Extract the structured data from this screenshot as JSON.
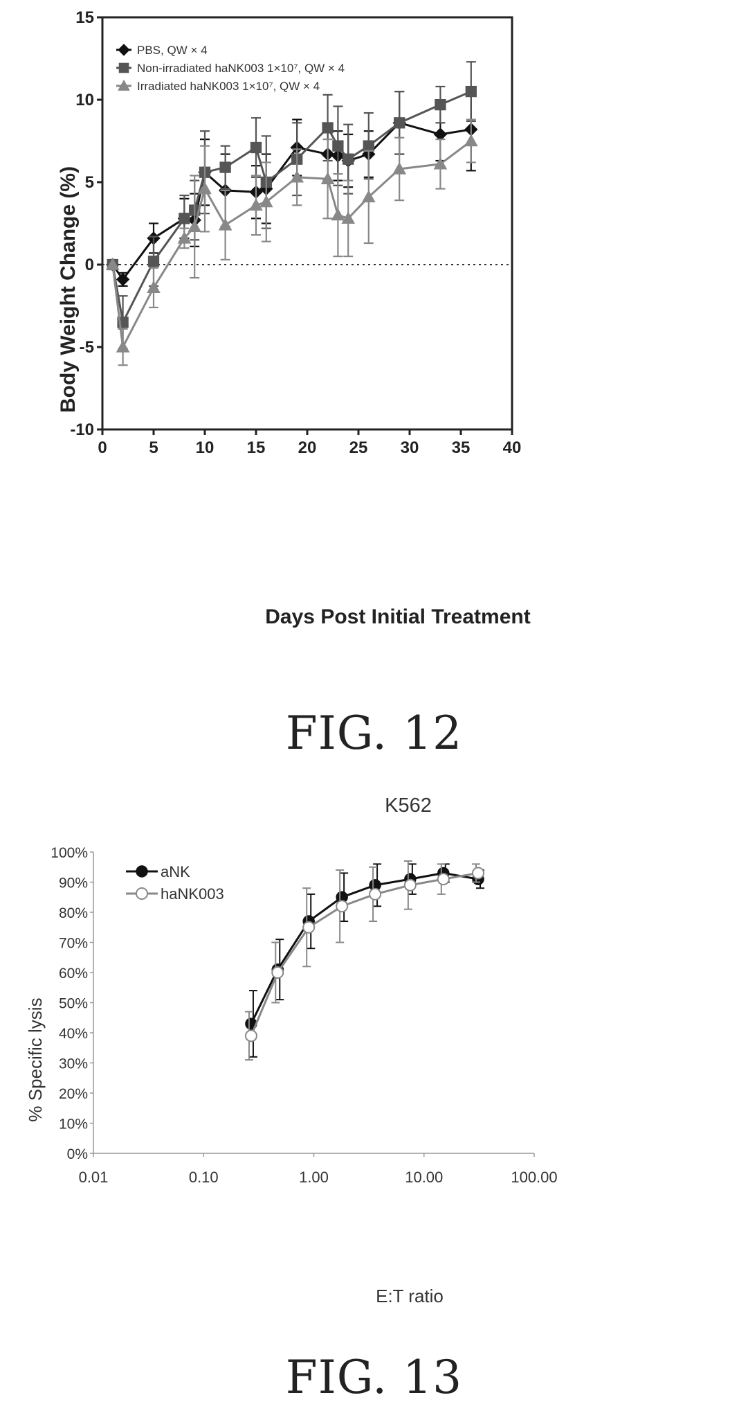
{
  "chart_data": [
    {
      "type": "line",
      "title": "",
      "xlabel": "Days Post Initial Treatment",
      "ylabel": "Body Weight Change (%)",
      "xlim": [
        0,
        40
      ],
      "ylim": [
        -10,
        15
      ],
      "xticks": [
        "0",
        "5",
        "10",
        "15",
        "20",
        "25",
        "30",
        "35",
        "40"
      ],
      "yticks": [
        "-10",
        "-5",
        "0",
        "5",
        "10",
        "15"
      ],
      "reference_line": 0,
      "legend_position": "top-left",
      "series": [
        {
          "name": "PBS, QW × 4",
          "marker": "diamond",
          "color": "#111111",
          "points": [
            {
              "x": 1,
              "y": 0,
              "err": 0
            },
            {
              "x": 2,
              "y": -0.9,
              "err": 0.4
            },
            {
              "x": 5,
              "y": 1.6,
              "err": 0.9
            },
            {
              "x": 8,
              "y": 2.8,
              "err": 1.2
            },
            {
              "x": 9,
              "y": 2.7,
              "err": 1.6
            },
            {
              "x": 10,
              "y": 5.6,
              "err": 2.0
            },
            {
              "x": 12,
              "y": 4.5,
              "err": 2.2
            },
            {
              "x": 15,
              "y": 4.4,
              "err": 1.6
            },
            {
              "x": 16,
              "y": 4.6,
              "err": 2.1
            },
            {
              "x": 19,
              "y": 7.1,
              "err": 1.7
            },
            {
              "x": 22,
              "y": 6.7,
              "err": 1.6
            },
            {
              "x": 23,
              "y": 6.6,
              "err": 1.5
            },
            {
              "x": 24,
              "y": 6.3,
              "err": 1.6
            },
            {
              "x": 26,
              "y": 6.7,
              "err": 1.4
            },
            {
              "x": 29,
              "y": 8.6,
              "err": 1.9
            },
            {
              "x": 33,
              "y": 7.9,
              "err": 1.6
            },
            {
              "x": 36,
              "y": 8.2,
              "err": 2.5
            }
          ]
        },
        {
          "name": "Non-irradiated haNK003 1×10⁷, QW × 4",
          "marker": "square",
          "color": "#555555",
          "points": [
            {
              "x": 1,
              "y": 0,
              "err": 0
            },
            {
              "x": 2,
              "y": -3.5,
              "err": 1.6
            },
            {
              "x": 5,
              "y": 0.2,
              "err": 1.5
            },
            {
              "x": 8,
              "y": 2.8,
              "err": 1.4
            },
            {
              "x": 9,
              "y": 3.3,
              "err": 1.8
            },
            {
              "x": 10,
              "y": 5.6,
              "err": 2.5
            },
            {
              "x": 12,
              "y": 5.9,
              "err": 1.3
            },
            {
              "x": 15,
              "y": 7.1,
              "err": 1.8
            },
            {
              "x": 16,
              "y": 5.0,
              "err": 2.8
            },
            {
              "x": 19,
              "y": 6.4,
              "err": 2.2
            },
            {
              "x": 22,
              "y": 8.3,
              "err": 2.0
            },
            {
              "x": 23,
              "y": 7.2,
              "err": 2.4
            },
            {
              "x": 24,
              "y": 6.4,
              "err": 2.1
            },
            {
              "x": 26,
              "y": 7.2,
              "err": 2.0
            },
            {
              "x": 29,
              "y": 8.6,
              "err": 1.9
            },
            {
              "x": 33,
              "y": 9.7,
              "err": 1.1
            },
            {
              "x": 36,
              "y": 10.5,
              "err": 1.8
            }
          ]
        },
        {
          "name": "Irradiated haNK003 1×10⁷, QW × 4",
          "marker": "triangle",
          "color": "#888888",
          "points": [
            {
              "x": 1,
              "y": 0,
              "err": 0
            },
            {
              "x": 2,
              "y": -5.0,
              "err": 1.1
            },
            {
              "x": 5,
              "y": -1.4,
              "err": 1.2
            },
            {
              "x": 8,
              "y": 1.6,
              "err": 0.6
            },
            {
              "x": 9,
              "y": 2.3,
              "err": 3.1
            },
            {
              "x": 10,
              "y": 4.6,
              "err": 2.6
            },
            {
              "x": 12,
              "y": 2.4,
              "err": 2.1
            },
            {
              "x": 15,
              "y": 3.6,
              "err": 1.8
            },
            {
              "x": 16,
              "y": 3.8,
              "err": 2.4
            },
            {
              "x": 19,
              "y": 5.3,
              "err": 1.7
            },
            {
              "x": 22,
              "y": 5.2,
              "err": 2.4
            },
            {
              "x": 23,
              "y": 3.0,
              "err": 2.5
            },
            {
              "x": 24,
              "y": 2.8,
              "err": 2.3
            },
            {
              "x": 26,
              "y": 4.1,
              "err": 2.8
            },
            {
              "x": 29,
              "y": 5.8,
              "err": 1.9
            },
            {
              "x": 33,
              "y": 6.1,
              "err": 1.5
            },
            {
              "x": 36,
              "y": 7.5,
              "err": 1.3
            }
          ]
        }
      ]
    },
    {
      "type": "line",
      "title": "K562",
      "xlabel": "E:T ratio",
      "ylabel": "% Specific lysis",
      "x_scale": "log",
      "xlim": [
        0.01,
        100
      ],
      "ylim": [
        0,
        100
      ],
      "xticks": [
        "0.01",
        "0.10",
        "1.00",
        "10.00",
        "100.00"
      ],
      "yticks": [
        "0%",
        "10%",
        "20%",
        "30%",
        "40%",
        "50%",
        "60%",
        "70%",
        "80%",
        "90%",
        "100%"
      ],
      "legend_position": "top-left",
      "series": [
        {
          "name": "aNK",
          "marker": "filled-circle",
          "color": "#111111",
          "points": [
            {
              "x": 0.27,
              "y": 43,
              "err": 11
            },
            {
              "x": 0.47,
              "y": 61,
              "err": 10
            },
            {
              "x": 0.9,
              "y": 77,
              "err": 9
            },
            {
              "x": 1.8,
              "y": 85,
              "err": 8
            },
            {
              "x": 3.6,
              "y": 89,
              "err": 7
            },
            {
              "x": 7.5,
              "y": 91,
              "err": 5
            },
            {
              "x": 15,
              "y": 93,
              "err": 3
            },
            {
              "x": 31,
              "y": 91,
              "err": 3
            }
          ]
        },
        {
          "name": "haNK003",
          "marker": "open-circle",
          "color": "#888888",
          "points": [
            {
              "x": 0.27,
              "y": 39,
              "err": 8
            },
            {
              "x": 0.47,
              "y": 60,
              "err": 10
            },
            {
              "x": 0.9,
              "y": 75,
              "err": 13
            },
            {
              "x": 1.8,
              "y": 82,
              "err": 12
            },
            {
              "x": 3.6,
              "y": 86,
              "err": 9
            },
            {
              "x": 7.5,
              "y": 89,
              "err": 8
            },
            {
              "x": 15,
              "y": 91,
              "err": 5
            },
            {
              "x": 31,
              "y": 93,
              "err": 3
            }
          ]
        }
      ]
    }
  ],
  "captions": {
    "fig12": "FIG. 12",
    "fig13": "FIG. 13"
  }
}
